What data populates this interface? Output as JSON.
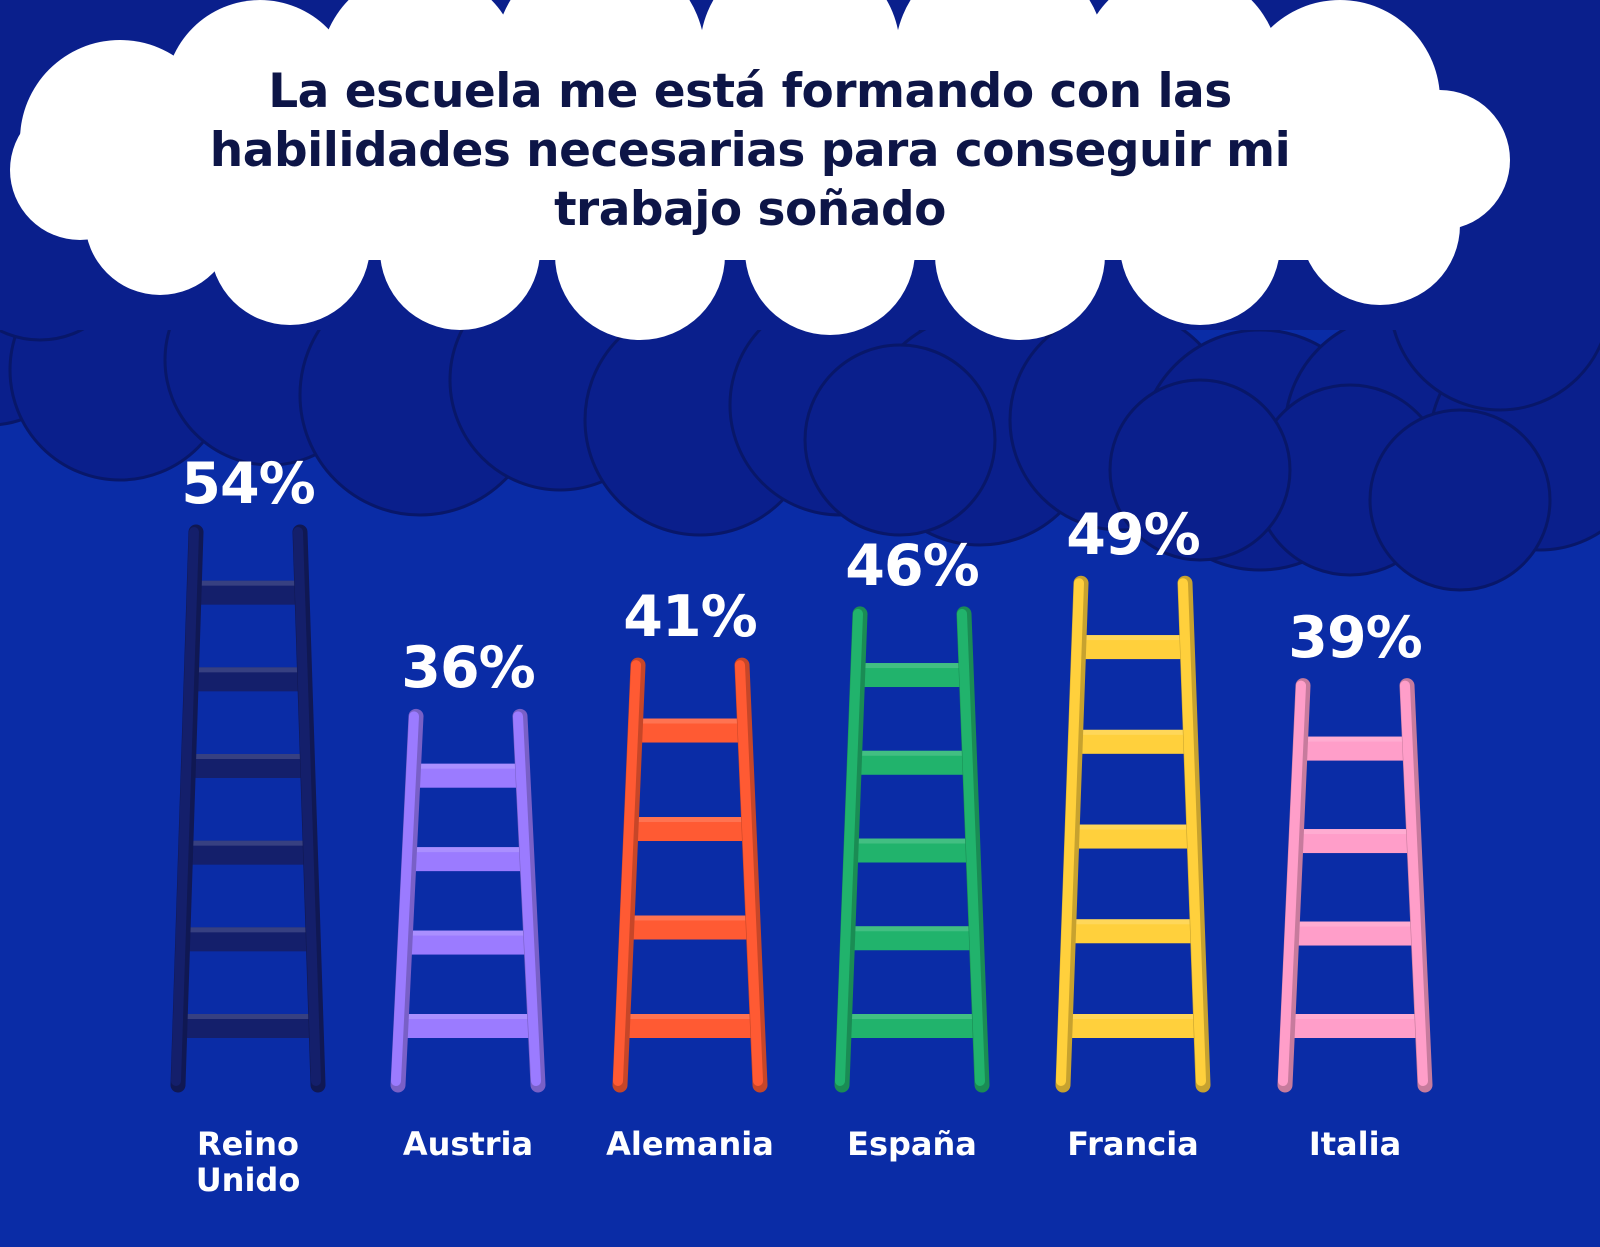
{
  "chart_data": {
    "type": "bar",
    "title": "La escuela me está formando con las habilidades necesarias para conseguir mi trabajo soñado",
    "categories": [
      "Reino\nUnido",
      "Austria",
      "Alemania",
      "España",
      "Francia",
      "Italia"
    ],
    "values": [
      54,
      36,
      41,
      46,
      49,
      39
    ],
    "value_labels": [
      "54%",
      "36%",
      "41%",
      "46%",
      "49%",
      "39%"
    ],
    "unit": "%",
    "ylim": [
      0,
      54
    ],
    "colors": [
      "#141f6b",
      "#9b7bff",
      "#ff5a33",
      "#21b36c",
      "#ffd03c",
      "#ff9ec9"
    ],
    "background": "#0a2ca6",
    "cloud_dark": "#0a1f8c",
    "cloud_white": "#ffffff",
    "title_color": "#0d1547"
  }
}
